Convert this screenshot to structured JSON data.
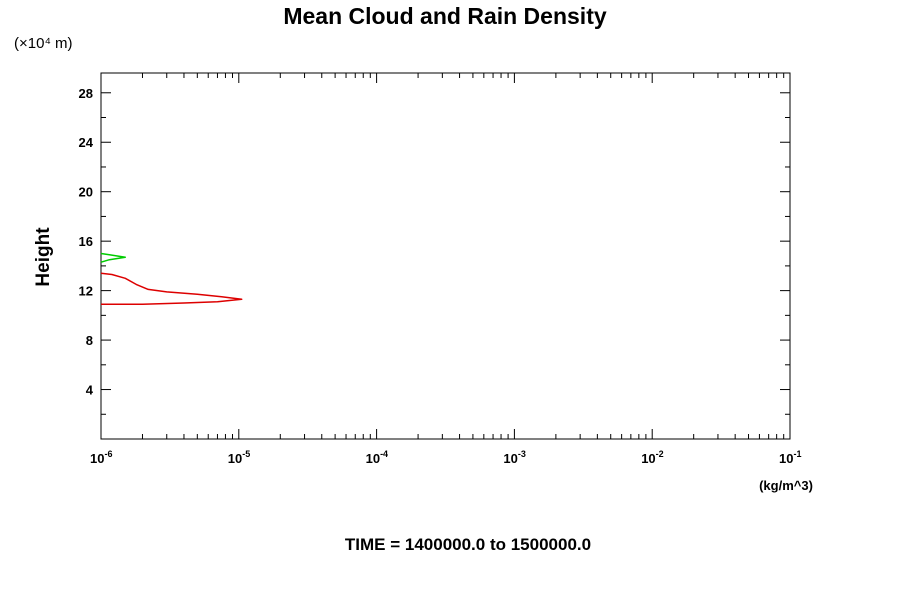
{
  "chart_data": {
    "type": "line",
    "title": "Mean Cloud and Rain Density",
    "y_unit_note": "(×10⁴ m)",
    "ylabel": "Height",
    "xlabel_unit": "(kg/m^3)",
    "footer": "TIME = 1400000.0 to 1500000.0",
    "x_scale": "log",
    "xlim": [
      1e-06,
      0.1
    ],
    "ylim": [
      0,
      29.6
    ],
    "x_ticks": [
      {
        "base": "10",
        "exp": "-6",
        "value": 1e-06
      },
      {
        "base": "10",
        "exp": "-5",
        "value": 1e-05
      },
      {
        "base": "10",
        "exp": "-4",
        "value": 0.0001
      },
      {
        "base": "10",
        "exp": "-3",
        "value": 0.001
      },
      {
        "base": "10",
        "exp": "-2",
        "value": 0.01
      },
      {
        "base": "10",
        "exp": "-1",
        "value": 0.1
      }
    ],
    "y_ticks": [
      "4",
      "8",
      "12",
      "16",
      "20",
      "24",
      "28"
    ],
    "series": [
      {
        "color": "#dd0000",
        "points": [
          [
            1e-06,
            13.4
          ],
          [
            1.2e-06,
            13.3
          ],
          [
            1.5e-06,
            13.0
          ],
          [
            1.8e-06,
            12.5
          ],
          [
            2.2e-06,
            12.1
          ],
          [
            3e-06,
            11.9
          ],
          [
            5e-06,
            11.7
          ],
          [
            7.5e-06,
            11.5
          ],
          [
            1.05e-05,
            11.3
          ],
          [
            7e-06,
            11.1
          ],
          [
            4e-06,
            11.0
          ],
          [
            2e-06,
            10.9
          ],
          [
            1e-06,
            10.9
          ]
        ]
      },
      {
        "color": "#00cc00",
        "points": [
          [
            1e-06,
            15.0
          ],
          [
            1.15e-06,
            14.9
          ],
          [
            1.5e-06,
            14.7
          ],
          [
            1.15e-06,
            14.5
          ],
          [
            1e-06,
            14.3
          ]
        ]
      }
    ]
  }
}
